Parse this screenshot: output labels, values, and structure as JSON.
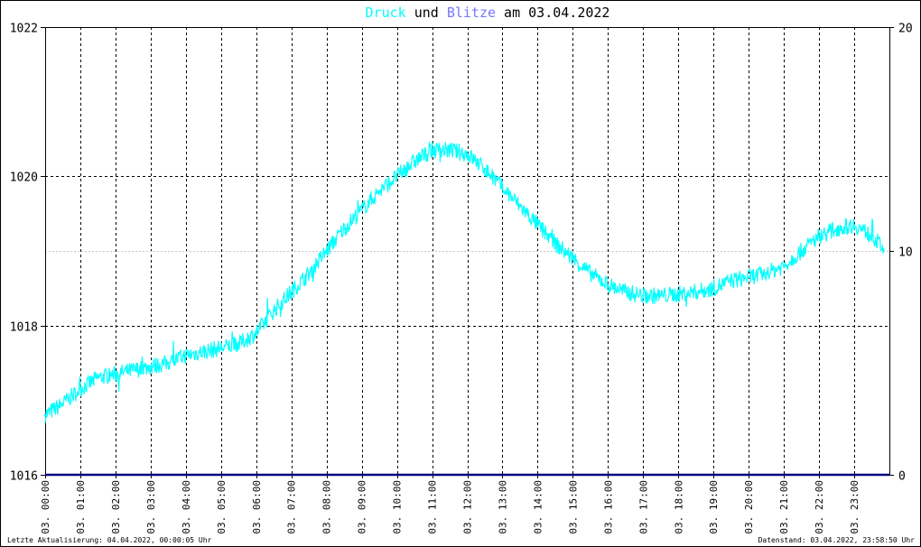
{
  "title": {
    "part1": "Druck",
    "part2": " und ",
    "part3": "Blitze",
    "part4": " am 03.04.2022",
    "color1": "#00ffff",
    "color3": "#7777ff"
  },
  "footer": {
    "left": "Letzte Aktualisierung: 04.04.2022, 00:00:05 Uhr",
    "right": "Datenstand: 03.04.2022, 23:58:50 Uhr"
  },
  "chart_data": {
    "type": "line",
    "title": "Druck und Blitze am 03.04.2022",
    "x_unit": "hour of day",
    "xlim": [
      0,
      24
    ],
    "x_tick_labels": [
      "03. 00:00",
      "03. 01:00",
      "03. 02:00",
      "03. 03:00",
      "03. 04:00",
      "03. 05:00",
      "03. 06:00",
      "03. 07:00",
      "03. 08:00",
      "03. 09:00",
      "03. 10:00",
      "03. 11:00",
      "03. 12:00",
      "03. 13:00",
      "03. 14:00",
      "03. 15:00",
      "03. 16:00",
      "03. 17:00",
      "03. 18:00",
      "03. 19:00",
      "03. 20:00",
      "03. 21:00",
      "03. 22:00",
      "03. 23:00"
    ],
    "y_left": {
      "ylim": [
        1016,
        1022
      ],
      "ticks": [
        1016,
        1018,
        1020,
        1022
      ]
    },
    "y_right": {
      "ylim": [
        0,
        20
      ],
      "ticks": [
        0,
        10,
        20
      ]
    },
    "grid": true,
    "series": [
      {
        "name": "Druck",
        "axis": "left",
        "color": "#00ffff",
        "x": [
          0,
          0.5,
          1,
          1.5,
          2,
          2.5,
          3,
          3.5,
          4,
          4.5,
          5,
          5.5,
          6,
          6.5,
          7,
          7.5,
          8,
          8.5,
          9,
          9.5,
          10,
          10.5,
          11,
          11.5,
          12,
          12.5,
          13,
          13.5,
          14,
          14.5,
          15,
          15.5,
          16,
          16.5,
          17,
          17.5,
          18,
          18.5,
          19,
          19.5,
          20,
          20.5,
          21,
          21.5,
          22,
          22.5,
          23,
          23.5,
          24
        ],
        "values": [
          1016.8,
          1016.95,
          1017.15,
          1017.3,
          1017.35,
          1017.4,
          1017.45,
          1017.5,
          1017.6,
          1017.65,
          1017.7,
          1017.75,
          1017.9,
          1018.2,
          1018.45,
          1018.7,
          1019.0,
          1019.3,
          1019.55,
          1019.8,
          1020.0,
          1020.2,
          1020.35,
          1020.35,
          1020.3,
          1020.1,
          1019.85,
          1019.6,
          1019.35,
          1019.1,
          1018.9,
          1018.7,
          1018.55,
          1018.45,
          1018.4,
          1018.4,
          1018.42,
          1018.45,
          1018.5,
          1018.6,
          1018.65,
          1018.7,
          1018.8,
          1019.0,
          1019.2,
          1019.3,
          1019.35,
          1019.2,
          1018.95
        ]
      },
      {
        "name": "Blitze",
        "axis": "right",
        "color": "#000080",
        "x": [
          0,
          24
        ],
        "values": [
          0,
          0
        ]
      }
    ]
  }
}
